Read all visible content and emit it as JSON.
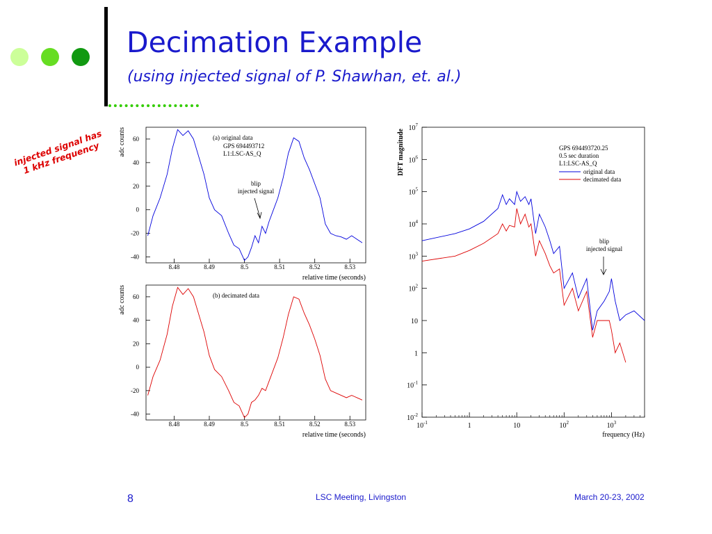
{
  "slide": {
    "title": "Decimation Example",
    "subtitle": "(using injected signal of P. Shawhan, et. al.)",
    "side_annotation_line1": "injected signal has",
    "side_annotation_line2": "1 kHz frequency",
    "bullet_colors": [
      "#ccff99",
      "#66dd22",
      "#119911"
    ],
    "accent_color": "#1a1acc"
  },
  "footer": {
    "page_number": "8",
    "event": "LSC Meeting, Livingston",
    "date": "March 20-23, 2002"
  },
  "chart_data": [
    {
      "type": "line",
      "panel_label": "(a)  original data",
      "info_lines": [
        "GPS 694493712",
        "L1:LSC-AS_Q"
      ],
      "annotation": [
        "blip",
        "injected signal"
      ],
      "xlabel": "relative time (seconds)",
      "ylabel": "adc counts",
      "xlim": [
        8.472,
        8.5345
      ],
      "ylim": [
        -45,
        70
      ],
      "xticks": [
        "8.48",
        "8.49",
        "8.5",
        "8.51",
        "8.52",
        "8.53"
      ],
      "yticks": [
        "60",
        "40",
        "20",
        "0",
        "-20",
        "-40"
      ],
      "color": "#0000dd",
      "series": [
        {
          "x": [
            8.4725,
            8.474,
            8.476,
            8.478,
            8.4795,
            8.481,
            8.4825,
            8.484,
            8.4855,
            8.487,
            8.4885,
            8.49,
            8.4915,
            8.4935,
            8.4955,
            8.497,
            8.4985,
            8.5,
            8.501,
            8.502,
            8.503,
            8.504,
            8.505,
            8.506,
            8.507,
            8.508,
            8.5095,
            8.511,
            8.5125,
            8.514,
            8.5155,
            8.517,
            8.5185,
            8.52,
            8.5215,
            8.523,
            8.5245,
            8.526,
            8.5275,
            8.529,
            8.5305,
            8.532,
            8.5335
          ],
          "y": [
            -22,
            -5,
            10,
            30,
            52,
            68,
            63,
            67,
            60,
            45,
            30,
            10,
            0,
            -5,
            -20,
            -30,
            -33,
            -43,
            -40,
            -32,
            -22,
            -28,
            -14,
            -20,
            -10,
            -2,
            10,
            27,
            48,
            61,
            58,
            44,
            34,
            22,
            10,
            -12,
            -20,
            -22,
            -23,
            -25,
            -22,
            -25,
            -28
          ]
        }
      ]
    },
    {
      "type": "line",
      "panel_label": "(b)  decimated data",
      "xlabel": "relative time (seconds)",
      "ylabel": "adc counts",
      "xlim": [
        8.472,
        8.5345
      ],
      "ylim": [
        -45,
        70
      ],
      "xticks": [
        "8.48",
        "8.49",
        "8.5",
        "8.51",
        "8.52",
        "8.53"
      ],
      "yticks": [
        "60",
        "40",
        "20",
        "0",
        "-20",
        "-40"
      ],
      "color": "#dd0000",
      "series": [
        {
          "x": [
            8.4725,
            8.474,
            8.476,
            8.478,
            8.4795,
            8.481,
            8.4825,
            8.484,
            8.4855,
            8.487,
            8.4885,
            8.49,
            8.4915,
            8.4935,
            8.4955,
            8.497,
            8.4985,
            8.5,
            8.501,
            8.502,
            8.503,
            8.504,
            8.505,
            8.506,
            8.507,
            8.508,
            8.5095,
            8.511,
            8.5125,
            8.514,
            8.5155,
            8.517,
            8.5185,
            8.52,
            8.5215,
            8.523,
            8.5245,
            8.526,
            8.5275,
            8.529,
            8.5305,
            8.532,
            8.5335
          ],
          "y": [
            -24,
            -8,
            6,
            28,
            52,
            68,
            62,
            67,
            60,
            45,
            30,
            10,
            -2,
            -8,
            -20,
            -30,
            -33,
            -43,
            -40,
            -30,
            -28,
            -24,
            -18,
            -20,
            -12,
            -4,
            8,
            25,
            45,
            60,
            58,
            46,
            36,
            24,
            10,
            -10,
            -20,
            -22,
            -24,
            -26,
            -24,
            -26,
            -28
          ]
        }
      ]
    },
    {
      "type": "line",
      "log_x": true,
      "log_y": true,
      "info_lines": [
        "GPS 694493720.25",
        "0.5 sec duration",
        "L1:LSC-AS_Q"
      ],
      "annotation": [
        "blip",
        "injected signal"
      ],
      "xlabel": "frequency (Hz)",
      "ylabel": "DFT magnitude",
      "xlim": [
        0.1,
        5000
      ],
      "ylim": [
        0.01,
        10000000
      ],
      "xticks": [
        "10^-1",
        "1",
        "10",
        "10^2",
        "10^3"
      ],
      "yticks": [
        "10^7",
        "10^6",
        "10^5",
        "10^4",
        "10^3",
        "10^2",
        "10",
        "1",
        "10^-1",
        "10^-2"
      ],
      "series": [
        {
          "name": "original data",
          "color": "#0000dd",
          "x": [
            0.1,
            0.5,
            1,
            2,
            4,
            5,
            6,
            7,
            9,
            10,
            12,
            15,
            18,
            20,
            25,
            30,
            40,
            50,
            60,
            80,
            100,
            150,
            200,
            300,
            400,
            500,
            700,
            900,
            1000,
            1200,
            1500,
            2000,
            3000,
            5000
          ],
          "y": [
            3000,
            5000,
            7000,
            12000,
            30000,
            80000,
            40000,
            60000,
            40000,
            100000,
            50000,
            70000,
            40000,
            60000,
            5000,
            20000,
            8000,
            3000,
            1200,
            2000,
            100,
            300,
            50,
            200,
            5,
            20,
            40,
            80,
            200,
            40,
            10,
            15,
            20,
            10
          ]
        },
        {
          "name": "decimated data",
          "color": "#dd0000",
          "x": [
            0.1,
            0.5,
            1,
            2,
            4,
            5,
            6,
            7,
            9,
            10,
            12,
            15,
            18,
            20,
            25,
            30,
            40,
            50,
            60,
            80,
            100,
            150,
            200,
            300,
            400,
            500,
            700,
            900,
            1000,
            1200,
            1500,
            2000
          ],
          "y": [
            700,
            1000,
            1500,
            2500,
            5000,
            10000,
            6000,
            9000,
            8000,
            30000,
            10000,
            20000,
            8000,
            10000,
            1000,
            3000,
            1200,
            500,
            300,
            400,
            30,
            100,
            20,
            80,
            3,
            10,
            10,
            10,
            5,
            1,
            2,
            0.5
          ]
        }
      ]
    }
  ]
}
